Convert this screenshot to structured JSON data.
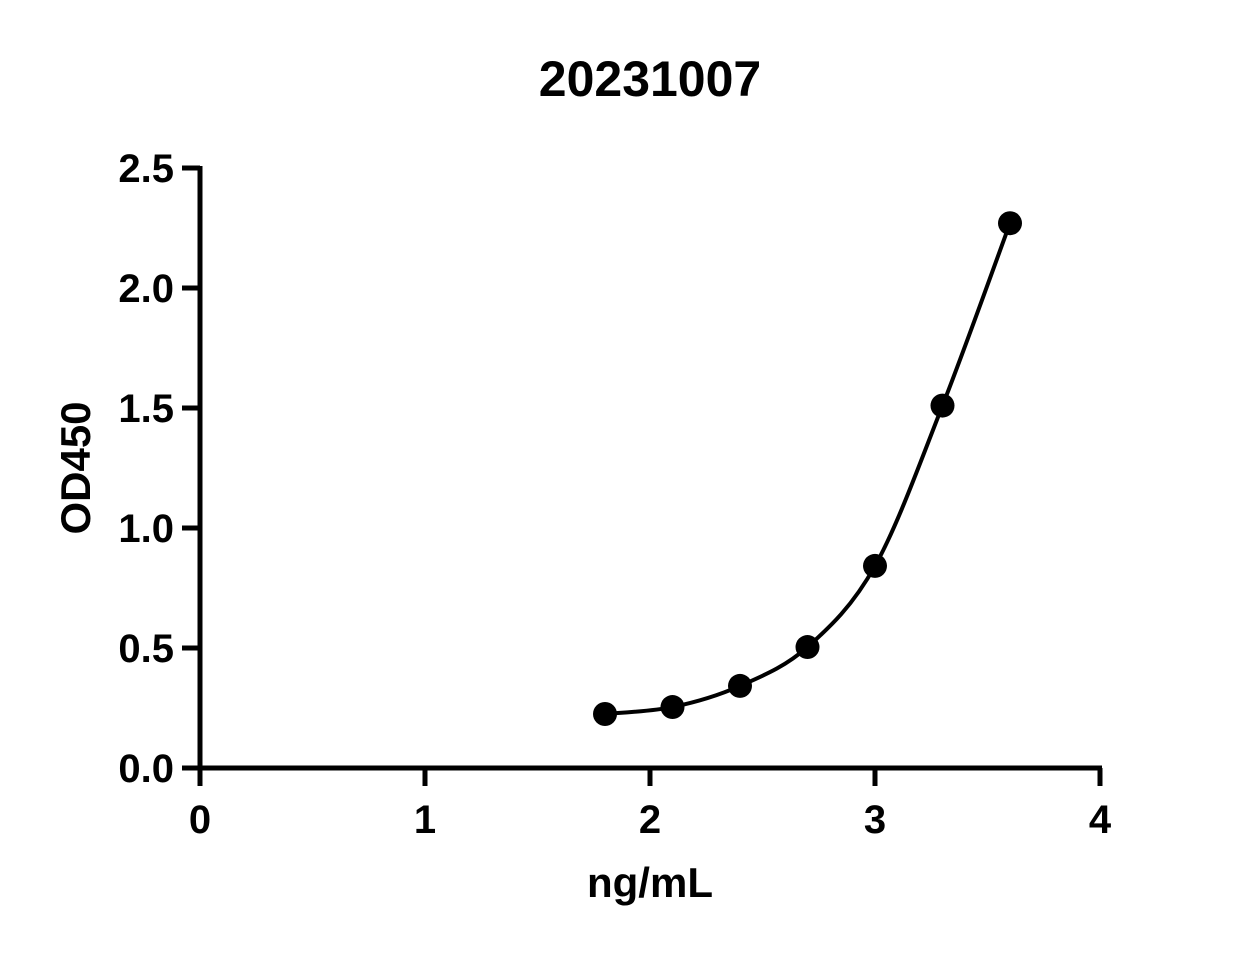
{
  "chart_data": {
    "type": "scatter",
    "title": "20231007",
    "xlabel": "ng/mL",
    "ylabel": "OD450",
    "xlim": [
      0,
      4
    ],
    "ylim": [
      0,
      2.5
    ],
    "xticks": [
      "0",
      "1",
      "2",
      "3",
      "4"
    ],
    "yticks": [
      "0.0",
      "0.5",
      "1.0",
      "1.5",
      "2.0",
      "2.5"
    ],
    "grid": false,
    "fit_line": true,
    "series": [
      {
        "x": [
          1.8,
          2.1,
          2.4,
          2.7,
          3.0,
          3.3,
          3.6
        ],
        "y": [
          0.225,
          0.254,
          0.342,
          0.504,
          0.842,
          1.51,
          2.27
        ]
      }
    ],
    "colors": {
      "marker": "#000000",
      "line": "#000000"
    }
  }
}
